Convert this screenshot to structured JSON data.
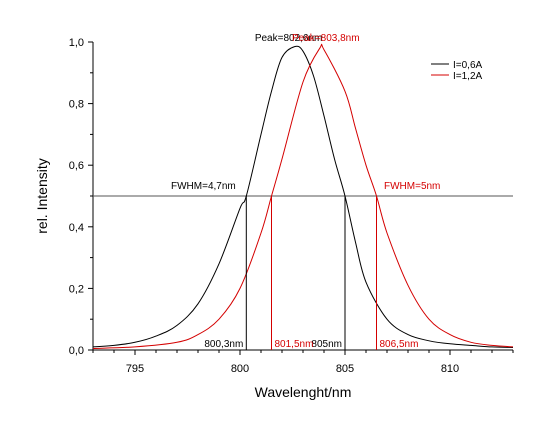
{
  "chart_data": {
    "type": "line",
    "title": "",
    "xlabel": "Wavelenght/nm",
    "ylabel": "rel. Intensity",
    "xlim": [
      793,
      813
    ],
    "ylim": [
      0,
      1.0
    ],
    "x_ticks": [
      795,
      800,
      805,
      810
    ],
    "x_tick_labels": [
      "795",
      "800",
      "805",
      "810"
    ],
    "y_ticks": [
      0,
      0.2,
      0.4,
      0.6,
      0.8,
      1.0
    ],
    "y_tick_labels": [
      "0,0",
      "0,2",
      "0,4",
      "0,6",
      "0,8",
      "1,0"
    ],
    "grid": false,
    "legend_position": "top-right",
    "colors": {
      "series1": "#000000",
      "series2": "#d40000",
      "half_max_line": "#555555"
    },
    "series": [
      {
        "name": "I=0,6A",
        "color": "#000000",
        "x": [
          793,
          794,
          795,
          796,
          797,
          798,
          799,
          800,
          800.3,
          801,
          801.5,
          802,
          802.6,
          803,
          803.5,
          804,
          804.5,
          805,
          805.5,
          806,
          807,
          808,
          809,
          810,
          811,
          812,
          813
        ],
        "y": [
          0.01,
          0.015,
          0.025,
          0.045,
          0.08,
          0.15,
          0.28,
          0.46,
          0.5,
          0.7,
          0.84,
          0.95,
          0.985,
          0.97,
          0.89,
          0.76,
          0.62,
          0.5,
          0.35,
          0.22,
          0.1,
          0.05,
          0.03,
          0.02,
          0.015,
          0.01,
          0.008
        ]
      },
      {
        "name": "I=1,2A",
        "color": "#d40000",
        "x": [
          793,
          795,
          797,
          798,
          799,
          800,
          801,
          801.5,
          802,
          803,
          803.8,
          804,
          805,
          805.5,
          806,
          806.5,
          807,
          808,
          809,
          810,
          811,
          812,
          813
        ],
        "y": [
          0.005,
          0.01,
          0.025,
          0.05,
          0.1,
          0.2,
          0.38,
          0.5,
          0.62,
          0.87,
          0.98,
          0.975,
          0.84,
          0.72,
          0.6,
          0.5,
          0.38,
          0.21,
          0.1,
          0.05,
          0.025,
          0.015,
          0.01
        ]
      }
    ],
    "half_max_line": {
      "y": 0.5
    },
    "fwhm_markers": [
      {
        "x": 800.3,
        "label": "800,3nm",
        "series": 0
      },
      {
        "x": 805,
        "label": "805nm",
        "series": 0
      },
      {
        "x": 801.5,
        "label": "801,5nm",
        "series": 1
      },
      {
        "x": 806.5,
        "label": "806,5nm",
        "series": 1
      }
    ],
    "annotations": {
      "peak1": {
        "text": "Peak=802,6nm",
        "x": 802.6,
        "y": 1.0,
        "series": 0
      },
      "peak2": {
        "text": "Peak=803,8nm",
        "x": 803.8,
        "y": 1.0,
        "series": 1
      },
      "fwhm1": {
        "text": "FWHM=4,7nm",
        "series": 0
      },
      "fwhm2": {
        "text": "FWHM=5nm",
        "series": 1
      }
    }
  }
}
